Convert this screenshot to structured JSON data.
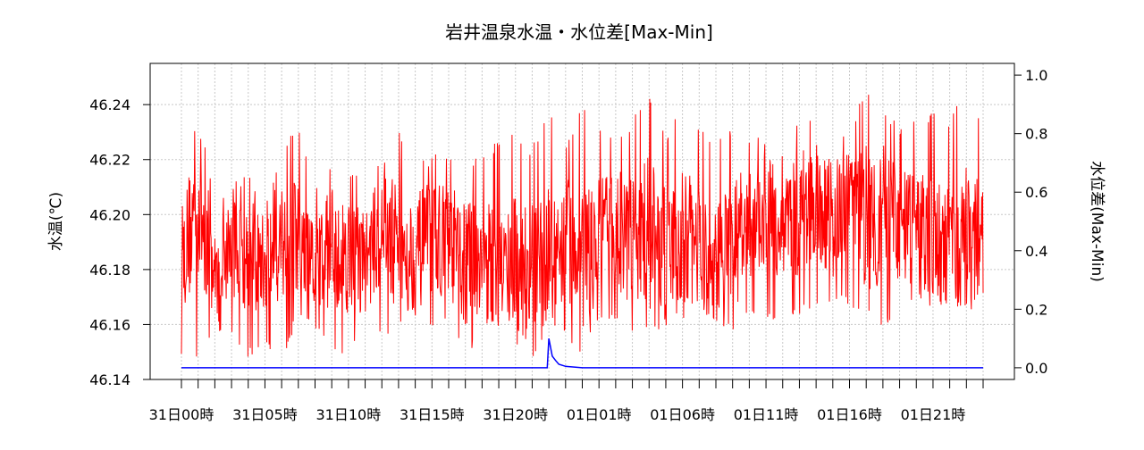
{
  "chart_data": {
    "type": "line",
    "title": "岩井温泉水温・水位差[Max-Min]",
    "ylabel_left": "水温(℃)",
    "ylabel_right": "水位差(Max-Min)",
    "ylim_left": [
      46.14,
      46.255
    ],
    "ylim_right": [
      -0.04,
      1.04
    ],
    "yticks_left": [
      "46.14",
      "46.16",
      "46.18",
      "46.20",
      "46.22",
      "46.24"
    ],
    "yticks_right": [
      "0.0",
      "0.2",
      "0.4",
      "0.6",
      "0.8",
      "1.0"
    ],
    "grid": true,
    "x_range_hours": [
      0,
      48
    ],
    "x_tick_labels": [
      "31日00時",
      "31日05時",
      "31日10時",
      "31日15時",
      "31日20時",
      "01日01時",
      "01日06時",
      "01日11時",
      "01日16時",
      "01日21時"
    ],
    "series": [
      {
        "color": "#ff0000",
        "axis": "left",
        "x": [
          0,
          1,
          2,
          3,
          4,
          5,
          6,
          7,
          8,
          9,
          10,
          11,
          12,
          13,
          14,
          15,
          16,
          17,
          18,
          19,
          20,
          21,
          22,
          23,
          24,
          25,
          26,
          27,
          28,
          29,
          30,
          31,
          32,
          33,
          34,
          35,
          36,
          37,
          38,
          39,
          40,
          41,
          42,
          43,
          44,
          45,
          46,
          47,
          48
        ],
        "values": [
          46.182,
          46.205,
          46.178,
          46.19,
          46.185,
          46.182,
          46.193,
          46.188,
          46.18,
          46.19,
          46.186,
          46.183,
          46.195,
          46.188,
          46.185,
          46.192,
          46.19,
          46.182,
          46.186,
          46.18,
          46.183,
          46.178,
          46.185,
          46.19,
          46.188,
          46.19,
          46.195,
          46.19,
          46.193,
          46.186,
          46.192,
          46.187,
          46.183,
          46.19,
          46.195,
          46.2,
          46.196,
          46.2,
          46.205,
          46.198,
          46.203,
          46.2,
          46.2,
          46.193,
          46.196,
          46.19,
          46.188,
          46.19,
          46.193
        ],
        "max": [
          46.201,
          46.241,
          46.205,
          46.213,
          46.215,
          46.206,
          46.223,
          46.234,
          46.212,
          46.219,
          46.214,
          46.218,
          46.22,
          46.232,
          46.219,
          46.222,
          46.224,
          46.22,
          46.221,
          46.228,
          46.23,
          46.225,
          46.24,
          46.224,
          46.241,
          46.233,
          46.228,
          46.235,
          46.243,
          46.229,
          46.242,
          46.232,
          46.226,
          46.233,
          46.23,
          46.228,
          46.224,
          46.238,
          46.232,
          46.232,
          46.232,
          46.246,
          46.24,
          46.233,
          46.234,
          46.238,
          46.235,
          46.25,
          46.233
        ],
        "min": [
          46.146,
          46.148,
          46.158,
          46.155,
          46.148,
          46.152,
          46.145,
          46.163,
          46.158,
          46.148,
          46.145,
          46.16,
          46.155,
          46.158,
          46.152,
          46.157,
          46.162,
          46.145,
          46.158,
          46.162,
          46.152,
          46.147,
          46.16,
          46.157,
          46.145,
          46.162,
          46.16,
          46.155,
          46.156,
          46.158,
          46.162,
          46.16,
          46.16,
          46.158,
          46.164,
          46.162,
          46.16,
          46.163,
          46.166,
          46.168,
          46.166,
          46.162,
          46.158,
          46.162,
          46.168,
          46.163,
          46.168,
          46.166,
          46.165
        ]
      },
      {
        "color": "#0000ff",
        "axis": "right",
        "x": [
          0,
          6,
          12,
          18,
          20.5,
          21.9,
          22,
          22.1,
          22.2,
          22.4,
          22.6,
          23,
          24,
          30,
          36,
          42,
          48
        ],
        "values": [
          0.0,
          0.0,
          0.0,
          0.0,
          0.0,
          0.0,
          0.1,
          0.07,
          0.04,
          0.025,
          0.012,
          0.005,
          0.0,
          0.0,
          0.0,
          0.0,
          0.0
        ]
      }
    ]
  }
}
